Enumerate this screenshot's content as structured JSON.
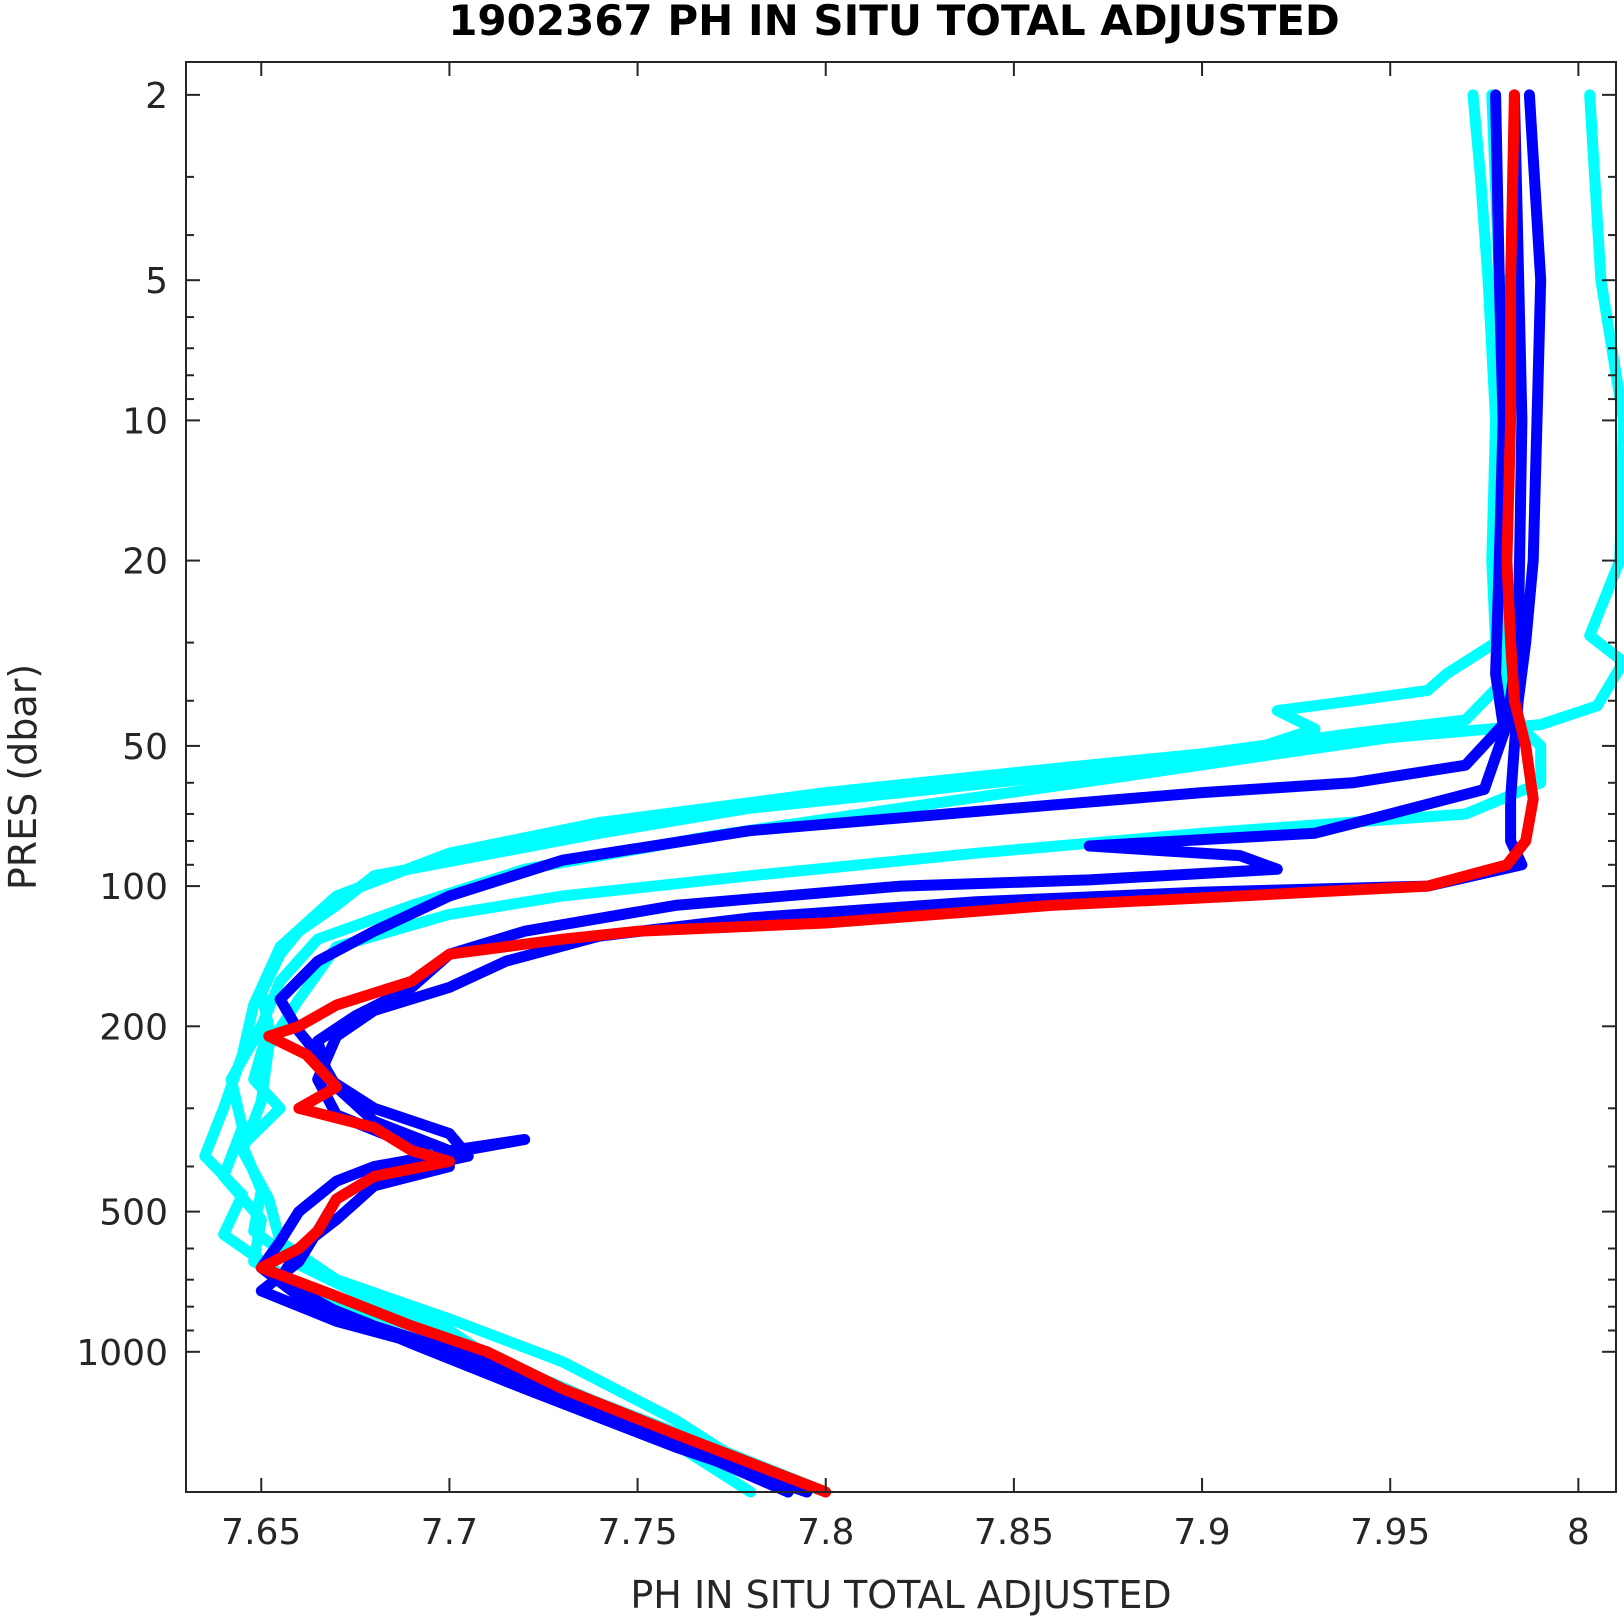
{
  "chart_data": {
    "type": "line",
    "title": "1902367  PH IN SITU TOTAL ADJUSTED",
    "xlabel": "PH IN SITU TOTAL ADJUSTED",
    "ylabel": "PRES (dbar)",
    "xlim": [
      7.63,
      8.01
    ],
    "ylim": [
      1.7,
      2000
    ],
    "yscale": "log",
    "y_reversed": true,
    "grid": false,
    "x_ticks": [
      "7.65",
      "7.7",
      "7.75",
      "7.8",
      "7.85",
      "7.9",
      "7.95",
      "8"
    ],
    "x_tick_values": [
      7.65,
      7.7,
      7.75,
      7.8,
      7.85,
      7.9,
      7.95,
      8.0
    ],
    "y_ticks": [
      "2",
      "5",
      "10",
      "20",
      "50",
      "100",
      "200",
      "500",
      "1000"
    ],
    "y_tick_values": [
      2,
      5,
      10,
      20,
      50,
      100,
      200,
      500,
      1000
    ],
    "y_minor_ticks": [
      3,
      4,
      6,
      7,
      8,
      9,
      30,
      40,
      60,
      70,
      80,
      90,
      300,
      400,
      600,
      700,
      800,
      900
    ],
    "series": [
      {
        "color": "#00ffff",
        "points": [
          [
            7.972,
            2.0
          ],
          [
            7.974,
            3.0
          ],
          [
            7.976,
            5.0
          ],
          [
            7.978,
            10.0
          ],
          [
            7.977,
            20.0
          ],
          [
            7.978,
            30.0
          ],
          [
            7.965,
            35.0
          ],
          [
            7.96,
            38.0
          ],
          [
            7.94,
            40.0
          ],
          [
            7.92,
            42.0
          ],
          [
            7.93,
            46.0
          ],
          [
            7.91,
            52.0
          ],
          [
            7.87,
            57.0
          ],
          [
            7.82,
            63.0
          ],
          [
            7.78,
            68.0
          ],
          [
            7.74,
            77.0
          ],
          [
            7.68,
            95.0
          ],
          [
            7.67,
            110.0
          ],
          [
            7.66,
            125.0
          ],
          [
            7.655,
            140.0
          ],
          [
            7.65,
            170.0
          ],
          [
            7.652,
            200.0
          ],
          [
            7.648,
            260.0
          ],
          [
            7.655,
            300.0
          ],
          [
            7.645,
            360.0
          ],
          [
            7.65,
            450.0
          ],
          [
            7.648,
            550.0
          ],
          [
            7.66,
            650.0
          ],
          [
            7.68,
            780.0
          ],
          [
            7.7,
            900.0
          ],
          [
            7.72,
            1150.0
          ],
          [
            7.76,
            1500.0
          ],
          [
            7.79,
            2000.0
          ]
        ]
      },
      {
        "color": "#00ffff",
        "points": [
          [
            7.977,
            2.0
          ],
          [
            7.979,
            5.0
          ],
          [
            7.98,
            10.0
          ],
          [
            7.981,
            20.0
          ],
          [
            7.982,
            35.0
          ],
          [
            7.97,
            44.0
          ],
          [
            7.94,
            47.0
          ],
          [
            7.9,
            52.0
          ],
          [
            7.86,
            56.0
          ],
          [
            7.8,
            63.0
          ],
          [
            7.74,
            73.0
          ],
          [
            7.7,
            85.0
          ],
          [
            7.67,
            105.0
          ],
          [
            7.655,
            135.0
          ],
          [
            7.648,
            180.0
          ],
          [
            7.645,
            230.0
          ],
          [
            7.64,
            300.0
          ],
          [
            7.635,
            380.0
          ],
          [
            7.645,
            460.0
          ],
          [
            7.64,
            560.0
          ],
          [
            7.655,
            680.0
          ],
          [
            7.67,
            820.0
          ],
          [
            7.69,
            950.0
          ],
          [
            7.73,
            1200.0
          ],
          [
            7.77,
            1600.0
          ],
          [
            7.8,
            2000.0
          ]
        ]
      },
      {
        "color": "#00ffff",
        "points": [
          [
            8.003,
            2.0
          ],
          [
            8.006,
            5.0
          ],
          [
            8.012,
            10.0
          ],
          [
            8.011,
            20.0
          ],
          [
            8.003,
            29.0
          ],
          [
            8.012,
            33.0
          ],
          [
            8.005,
            41.0
          ],
          [
            7.99,
            45.0
          ],
          [
            7.95,
            48.0
          ],
          [
            7.92,
            52.0
          ],
          [
            7.88,
            58.0
          ],
          [
            7.82,
            68.0
          ],
          [
            7.77,
            78.0
          ],
          [
            7.72,
            92.0
          ],
          [
            7.69,
            110.0
          ],
          [
            7.665,
            130.0
          ],
          [
            7.655,
            160.0
          ],
          [
            7.65,
            200.0
          ],
          [
            7.642,
            260.0
          ],
          [
            7.645,
            330.0
          ],
          [
            7.64,
            420.0
          ],
          [
            7.65,
            520.0
          ],
          [
            7.648,
            640.0
          ],
          [
            7.665,
            760.0
          ],
          [
            7.69,
            880.0
          ],
          [
            7.72,
            1100.0
          ],
          [
            7.75,
            1400.0
          ],
          [
            7.78,
            2000.0
          ]
        ]
      },
      {
        "color": "#00ffff",
        "points": [
          [
            7.98,
            5.0
          ],
          [
            7.981,
            20.0
          ],
          [
            7.98,
            42.0
          ],
          [
            7.99,
            50.0
          ],
          [
            7.99,
            60.0
          ],
          [
            7.97,
            70.0
          ],
          [
            7.9,
            77.0
          ],
          [
            7.84,
            85.0
          ],
          [
            7.78,
            95.0
          ],
          [
            7.73,
            105.0
          ],
          [
            7.7,
            115.0
          ],
          [
            7.67,
            135.0
          ],
          [
            7.66,
            175.0
          ],
          [
            7.652,
            220.0
          ],
          [
            7.65,
            290.0
          ],
          [
            7.645,
            370.0
          ],
          [
            7.652,
            470.0
          ],
          [
            7.655,
            580.0
          ],
          [
            7.67,
            700.0
          ],
          [
            7.7,
            850.0
          ],
          [
            7.73,
            1050.0
          ],
          [
            7.76,
            1400.0
          ],
          [
            7.79,
            2000.0
          ]
        ]
      },
      {
        "color": "#0000ff",
        "points": [
          [
            7.978,
            2.0
          ],
          [
            7.979,
            5.0
          ],
          [
            7.98,
            10.0
          ],
          [
            7.979,
            20.0
          ],
          [
            7.978,
            35.0
          ],
          [
            7.98,
            45.0
          ],
          [
            7.97,
            55.0
          ],
          [
            7.94,
            60.0
          ],
          [
            7.9,
            63.0
          ],
          [
            7.86,
            67.0
          ],
          [
            7.78,
            76.0
          ],
          [
            7.73,
            88.0
          ],
          [
            7.7,
            105.0
          ],
          [
            7.68,
            125.0
          ],
          [
            7.665,
            145.0
          ],
          [
            7.655,
            175.0
          ],
          [
            7.66,
            205.0
          ],
          [
            7.665,
            230.0
          ],
          [
            7.67,
            270.0
          ],
          [
            7.68,
            320.0
          ],
          [
            7.7,
            370.0
          ],
          [
            7.72,
            350.0
          ],
          [
            7.68,
            400.0
          ],
          [
            7.67,
            430.0
          ],
          [
            7.66,
            500.0
          ],
          [
            7.655,
            580.0
          ],
          [
            7.65,
            660.0
          ],
          [
            7.66,
            760.0
          ],
          [
            7.68,
            880.0
          ],
          [
            7.71,
            1050.0
          ],
          [
            7.75,
            1450.0
          ],
          [
            7.79,
            2000.0
          ]
        ]
      },
      {
        "color": "#0000ff",
        "points": [
          [
            7.987,
            2.0
          ],
          [
            7.99,
            5.0
          ],
          [
            7.989,
            10.0
          ],
          [
            7.988,
            20.0
          ],
          [
            7.986,
            30.0
          ],
          [
            7.984,
            40.0
          ],
          [
            7.983,
            50.0
          ],
          [
            7.982,
            65.0
          ],
          [
            7.982,
            80.0
          ],
          [
            7.985,
            90.0
          ],
          [
            7.96,
            100.0
          ],
          [
            7.9,
            103.0
          ],
          [
            7.84,
            108.0
          ],
          [
            7.78,
            117.0
          ],
          [
            7.74,
            128.0
          ],
          [
            7.715,
            145.0
          ],
          [
            7.7,
            165.0
          ],
          [
            7.68,
            185.0
          ],
          [
            7.67,
            210.0
          ],
          [
            7.665,
            260.0
          ],
          [
            7.67,
            310.0
          ],
          [
            7.69,
            360.0
          ],
          [
            7.7,
            400.0
          ],
          [
            7.68,
            440.0
          ],
          [
            7.67,
            520.0
          ],
          [
            7.66,
            600.0
          ],
          [
            7.655,
            700.0
          ],
          [
            7.67,
            820.0
          ],
          [
            7.69,
            960.0
          ],
          [
            7.72,
            1200.0
          ],
          [
            7.76,
            1600.0
          ],
          [
            7.795,
            2000.0
          ]
        ]
      },
      {
        "color": "#0000ff",
        "points": [
          [
            7.983,
            2.0
          ],
          [
            7.985,
            10.0
          ],
          [
            7.984,
            30.0
          ],
          [
            7.981,
            45.0
          ],
          [
            7.975,
            62.0
          ],
          [
            7.95,
            70.0
          ],
          [
            7.93,
            77.0
          ],
          [
            7.87,
            82.0
          ],
          [
            7.91,
            86.0
          ],
          [
            7.92,
            92.0
          ],
          [
            7.87,
            97.0
          ],
          [
            7.82,
            100.0
          ],
          [
            7.76,
            110.0
          ],
          [
            7.72,
            125.0
          ],
          [
            7.7,
            140.0
          ],
          [
            7.69,
            165.0
          ],
          [
            7.675,
            190.0
          ],
          [
            7.665,
            215.0
          ],
          [
            7.668,
            260.0
          ],
          [
            7.68,
            300.0
          ],
          [
            7.7,
            340.0
          ],
          [
            7.705,
            380.0
          ],
          [
            7.68,
            420.0
          ],
          [
            7.67,
            470.0
          ],
          [
            7.665,
            550.0
          ],
          [
            7.66,
            640.0
          ],
          [
            7.65,
            740.0
          ],
          [
            7.67,
            860.0
          ],
          [
            7.7,
            1000.0
          ],
          [
            7.74,
            1300.0
          ],
          [
            7.79,
            2000.0
          ]
        ]
      },
      {
        "color": "#ff0000",
        "points": [
          [
            7.983,
            2.0
          ],
          [
            7.982,
            5.0
          ],
          [
            7.982,
            10.0
          ],
          [
            7.981,
            20.0
          ],
          [
            7.982,
            30.0
          ],
          [
            7.983,
            40.0
          ],
          [
            7.986,
            50.0
          ],
          [
            7.988,
            65.0
          ],
          [
            7.986,
            80.0
          ],
          [
            7.981,
            90.0
          ],
          [
            7.96,
            100.0
          ],
          [
            7.91,
            105.0
          ],
          [
            7.86,
            110.0
          ],
          [
            7.8,
            120.0
          ],
          [
            7.75,
            125.0
          ],
          [
            7.73,
            130.0
          ],
          [
            7.7,
            140.0
          ],
          [
            7.69,
            160.0
          ],
          [
            7.67,
            180.0
          ],
          [
            7.66,
            200.0
          ],
          [
            7.652,
            210.0
          ],
          [
            7.662,
            230.0
          ],
          [
            7.67,
            270.0
          ],
          [
            7.66,
            300.0
          ],
          [
            7.68,
            330.0
          ],
          [
            7.69,
            370.0
          ],
          [
            7.7,
            390.0
          ],
          [
            7.68,
            420.0
          ],
          [
            7.67,
            470.0
          ],
          [
            7.665,
            550.0
          ],
          [
            7.66,
            600.0
          ],
          [
            7.65,
            660.0
          ],
          [
            7.67,
            760.0
          ],
          [
            7.69,
            880.0
          ],
          [
            7.71,
            1000.0
          ],
          [
            7.73,
            1200.0
          ],
          [
            7.76,
            1500.0
          ],
          [
            7.8,
            2000.0
          ]
        ]
      }
    ]
  }
}
